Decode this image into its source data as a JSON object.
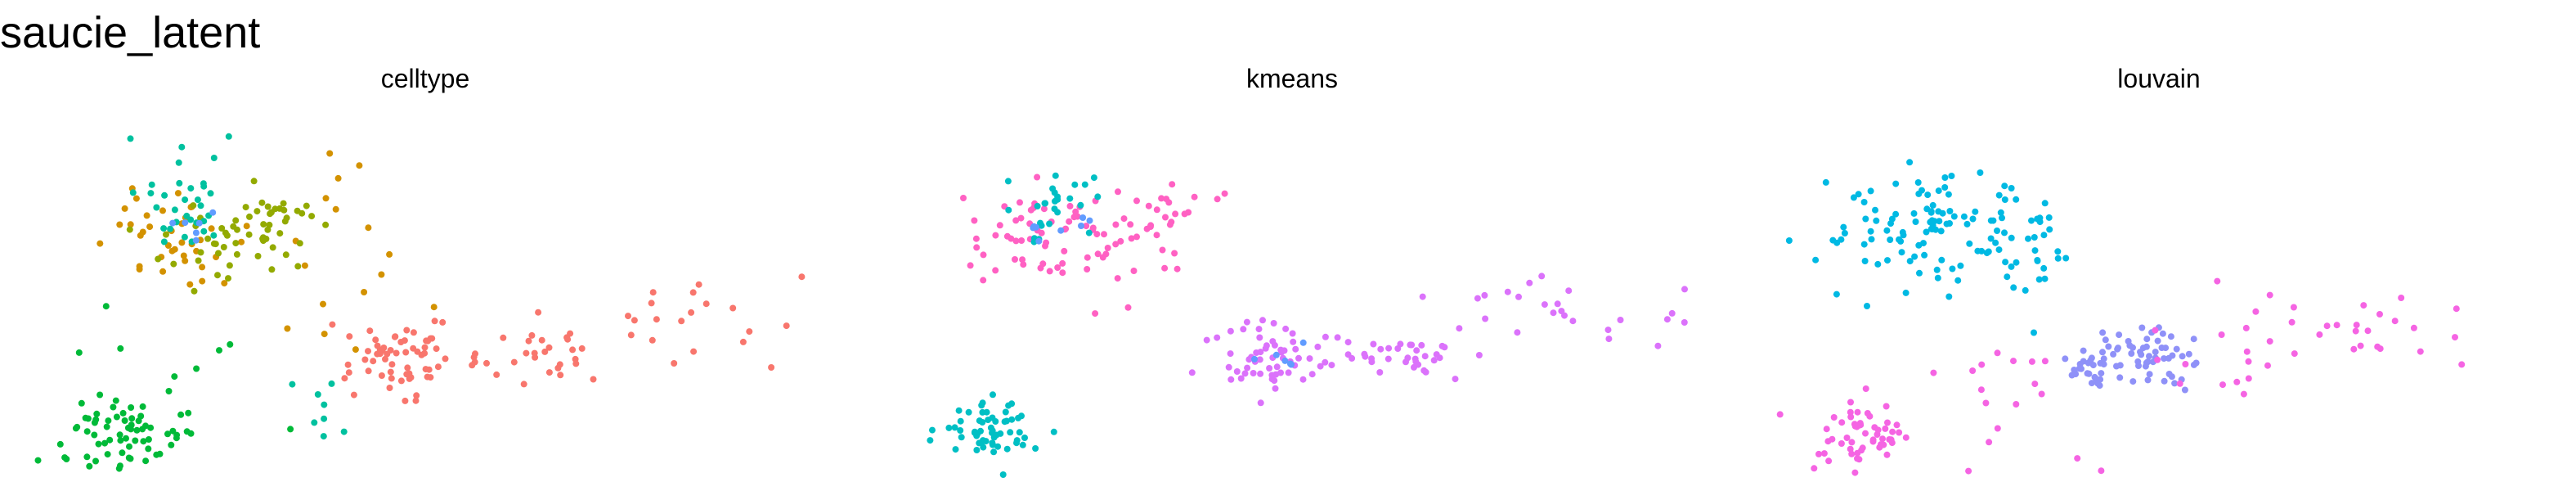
{
  "title": "saucie_latent",
  "palette": {
    "c0": "#F8766D",
    "c1": "#D39200",
    "c2": "#93AA00",
    "c3": "#00BA38",
    "c4": "#00C19F",
    "c5": "#00B9E3",
    "c6": "#619CFF",
    "c7": "#DB72FB",
    "c8": "#FF61C3",
    "c9": "#F564E3",
    "c10": "#00BFC4",
    "c11": "#8F91F8"
  },
  "chart_data": [
    {
      "type": "scatter",
      "title": "celltype",
      "xlim": [
        0,
        1
      ],
      "ylim": [
        0,
        1
      ],
      "grid": false,
      "axes": false,
      "legend": "none",
      "series": [
        {
          "color_key": "c0",
          "n": 110,
          "clusters": [
            [
              0.46,
              0.32,
              0.035,
              0.05,
              0.55
            ],
            [
              0.64,
              0.33,
              0.045,
              0.035,
              0.25
            ],
            [
              0.82,
              0.44,
              0.08,
              0.06,
              0.2
            ]
          ]
        },
        {
          "color_key": "c1",
          "n": 55,
          "clusters": [
            [
              0.18,
              0.66,
              0.045,
              0.06,
              0.7
            ],
            [
              0.38,
              0.6,
              0.07,
              0.12,
              0.3
            ]
          ]
        },
        {
          "color_key": "c2",
          "n": 60,
          "clusters": [
            [
              0.25,
              0.64,
              0.05,
              0.05,
              0.7
            ],
            [
              0.31,
              0.72,
              0.035,
              0.04,
              0.3
            ]
          ]
        },
        {
          "color_key": "c3",
          "n": 75,
          "clusters": [
            [
              0.12,
              0.12,
              0.035,
              0.045,
              0.75
            ],
            [
              0.06,
              0.06,
              0.03,
              0.03,
              0.1
            ],
            [
              0.2,
              0.32,
              0.06,
              0.1,
              0.15
            ]
          ]
        },
        {
          "color_key": "c4",
          "n": 40,
          "clusters": [
            [
              0.2,
              0.77,
              0.04,
              0.07,
              0.8
            ],
            [
              0.36,
              0.2,
              0.02,
              0.06,
              0.2
            ]
          ]
        },
        {
          "color_key": "c6",
          "n": 6,
          "clusters": [
            [
              0.2,
              0.68,
              0.02,
              0.02,
              1
            ]
          ]
        }
      ]
    },
    {
      "type": "scatter",
      "title": "kmeans",
      "xlim": [
        0,
        1
      ],
      "ylim": [
        0,
        1
      ],
      "grid": false,
      "axes": false,
      "legend": "none",
      "series": [
        {
          "color_key": "c7",
          "n": 120,
          "clusters": [
            [
              0.48,
              0.32,
              0.035,
              0.05,
              0.5
            ],
            [
              0.64,
              0.33,
              0.05,
              0.04,
              0.3
            ],
            [
              0.84,
              0.45,
              0.08,
              0.06,
              0.2
            ]
          ]
        },
        {
          "color_key": "c8",
          "n": 95,
          "clusters": [
            [
              0.2,
              0.66,
              0.05,
              0.07,
              0.7
            ],
            [
              0.33,
              0.7,
              0.04,
              0.06,
              0.3
            ]
          ]
        },
        {
          "color_key": "c10",
          "n": 85,
          "clusters": [
            [
              0.12,
              0.12,
              0.035,
              0.045,
              0.7
            ],
            [
              0.2,
              0.75,
              0.04,
              0.06,
              0.3
            ]
          ]
        },
        {
          "color_key": "c6",
          "n": 14,
          "clusters": [
            [
              0.18,
              0.7,
              0.03,
              0.03,
              0.6
            ],
            [
              0.48,
              0.32,
              0.02,
              0.03,
              0.4
            ]
          ]
        }
      ]
    },
    {
      "type": "scatter",
      "title": "louvain",
      "xlim": [
        0,
        1
      ],
      "ylim": [
        0,
        1
      ],
      "grid": false,
      "axes": false,
      "legend": "none",
      "series": [
        {
          "color_key": "c5",
          "n": 130,
          "clusters": [
            [
              0.2,
              0.68,
              0.06,
              0.08,
              0.75
            ],
            [
              0.33,
              0.62,
              0.04,
              0.08,
              0.25
            ]
          ]
        },
        {
          "color_key": "c11",
          "n": 80,
          "clusters": [
            [
              0.48,
              0.32,
              0.035,
              0.05,
              0.75
            ],
            [
              0.4,
              0.3,
              0.02,
              0.03,
              0.25
            ]
          ]
        },
        {
          "color_key": "c9",
          "n": 110,
          "clusters": [
            [
              0.12,
              0.12,
              0.035,
              0.045,
              0.5
            ],
            [
              0.7,
              0.38,
              0.1,
              0.07,
              0.35
            ],
            [
              0.3,
              0.22,
              0.04,
              0.1,
              0.15
            ]
          ]
        }
      ]
    }
  ]
}
